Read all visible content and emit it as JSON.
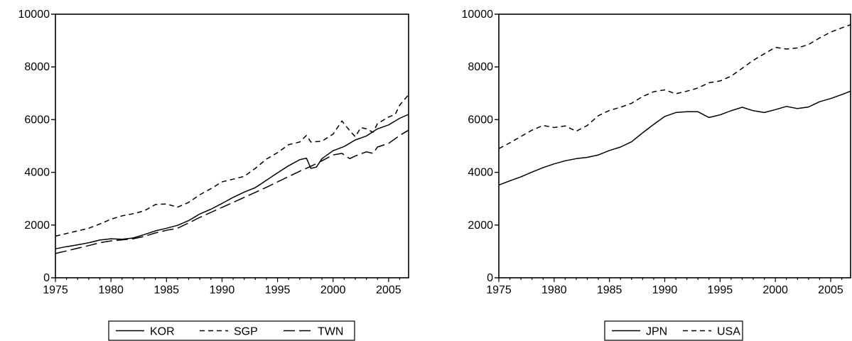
{
  "chart_data": [
    {
      "type": "line",
      "title": "",
      "xlabel": "",
      "ylabel": "",
      "xlim": [
        1975,
        2006.8
      ],
      "ylim": [
        0,
        10000
      ],
      "x_ticks": [
        1975,
        1980,
        1985,
        1990,
        1995,
        2000,
        2005
      ],
      "y_ticks": [
        0,
        2000,
        4000,
        6000,
        8000,
        10000
      ],
      "grid": false,
      "legend_position": "bottom",
      "series": [
        {
          "name": "KOR",
          "line_style": "solid",
          "points": [
            [
              1975,
              1100
            ],
            [
              1976,
              1180
            ],
            [
              1977,
              1250
            ],
            [
              1978,
              1330
            ],
            [
              1979,
              1430
            ],
            [
              1980,
              1480
            ],
            [
              1981,
              1460
            ],
            [
              1982,
              1510
            ],
            [
              1983,
              1640
            ],
            [
              1984,
              1780
            ],
            [
              1985,
              1880
            ],
            [
              1986,
              1990
            ],
            [
              1987,
              2170
            ],
            [
              1988,
              2420
            ],
            [
              1989,
              2600
            ],
            [
              1990,
              2820
            ],
            [
              1991,
              3050
            ],
            [
              1992,
              3250
            ],
            [
              1993,
              3420
            ],
            [
              1994,
              3700
            ],
            [
              1995,
              3980
            ],
            [
              1996,
              4250
            ],
            [
              1997,
              4480
            ],
            [
              1997.6,
              4540
            ],
            [
              1998,
              4150
            ],
            [
              1998.5,
              4200
            ],
            [
              1999,
              4520
            ],
            [
              2000,
              4820
            ],
            [
              2001,
              4980
            ],
            [
              2002,
              5230
            ],
            [
              2003,
              5380
            ],
            [
              2004,
              5650
            ],
            [
              2005,
              5800
            ],
            [
              2006,
              6050
            ],
            [
              2006.8,
              6200
            ]
          ]
        },
        {
          "name": "SGP",
          "line_style": "dashed",
          "points": [
            [
              1975,
              1580
            ],
            [
              1976,
              1680
            ],
            [
              1977,
              1780
            ],
            [
              1978,
              1880
            ],
            [
              1979,
              2040
            ],
            [
              1980,
              2220
            ],
            [
              1981,
              2350
            ],
            [
              1982,
              2430
            ],
            [
              1983,
              2540
            ],
            [
              1984,
              2780
            ],
            [
              1985,
              2800
            ],
            [
              1986,
              2680
            ],
            [
              1987,
              2860
            ],
            [
              1988,
              3150
            ],
            [
              1989,
              3380
            ],
            [
              1990,
              3640
            ],
            [
              1991,
              3740
            ],
            [
              1992,
              3850
            ],
            [
              1993,
              4150
            ],
            [
              1994,
              4500
            ],
            [
              1995,
              4750
            ],
            [
              1996,
              5050
            ],
            [
              1997,
              5150
            ],
            [
              1997.6,
              5400
            ],
            [
              1998,
              5150
            ],
            [
              1999,
              5180
            ],
            [
              2000,
              5450
            ],
            [
              2000.8,
              5950
            ],
            [
              2001.5,
              5580
            ],
            [
              2002,
              5350
            ],
            [
              2002.5,
              5700
            ],
            [
              2003,
              5650
            ],
            [
              2003.6,
              5520
            ],
            [
              2004,
              5850
            ],
            [
              2005,
              6100
            ],
            [
              2005.6,
              6200
            ],
            [
              2006,
              6550
            ],
            [
              2006.8,
              6950
            ]
          ]
        },
        {
          "name": "TWN",
          "line_style": "long-dash",
          "points": [
            [
              1975,
              920
            ],
            [
              1976,
              1020
            ],
            [
              1977,
              1120
            ],
            [
              1978,
              1220
            ],
            [
              1979,
              1330
            ],
            [
              1980,
              1400
            ],
            [
              1981,
              1440
            ],
            [
              1982,
              1480
            ],
            [
              1983,
              1570
            ],
            [
              1984,
              1700
            ],
            [
              1985,
              1800
            ],
            [
              1986,
              1880
            ],
            [
              1987,
              2080
            ],
            [
              1988,
              2290
            ],
            [
              1989,
              2480
            ],
            [
              1990,
              2670
            ],
            [
              1991,
              2860
            ],
            [
              1992,
              3050
            ],
            [
              1993,
              3240
            ],
            [
              1994,
              3430
            ],
            [
              1995,
              3640
            ],
            [
              1996,
              3840
            ],
            [
              1997,
              4040
            ],
            [
              1998,
              4230
            ],
            [
              1999,
              4440
            ],
            [
              2000,
              4660
            ],
            [
              2000.8,
              4720
            ],
            [
              2001.5,
              4520
            ],
            [
              2002,
              4620
            ],
            [
              2003,
              4780
            ],
            [
              2003.6,
              4720
            ],
            [
              2004,
              4960
            ],
            [
              2005,
              5100
            ],
            [
              2006,
              5400
            ],
            [
              2006.8,
              5600
            ]
          ]
        }
      ]
    },
    {
      "type": "line",
      "title": "",
      "xlabel": "",
      "ylabel": "",
      "xlim": [
        1975,
        2006.8
      ],
      "ylim": [
        0,
        10000
      ],
      "x_ticks": [
        1975,
        1980,
        1985,
        1990,
        1995,
        2000,
        2005
      ],
      "y_ticks": [
        0,
        2000,
        4000,
        6000,
        8000,
        10000
      ],
      "grid": false,
      "legend_position": "bottom",
      "series": [
        {
          "name": "JPN",
          "line_style": "solid",
          "points": [
            [
              1975,
              3520
            ],
            [
              1976,
              3680
            ],
            [
              1977,
              3830
            ],
            [
              1978,
              4010
            ],
            [
              1979,
              4180
            ],
            [
              1980,
              4320
            ],
            [
              1981,
              4440
            ],
            [
              1982,
              4520
            ],
            [
              1983,
              4570
            ],
            [
              1984,
              4660
            ],
            [
              1985,
              4830
            ],
            [
              1986,
              4960
            ],
            [
              1987,
              5160
            ],
            [
              1988,
              5500
            ],
            [
              1989,
              5820
            ],
            [
              1990,
              6120
            ],
            [
              1991,
              6270
            ],
            [
              1992,
              6300
            ],
            [
              1993,
              6300
            ],
            [
              1994,
              6080
            ],
            [
              1995,
              6180
            ],
            [
              1996,
              6340
            ],
            [
              1997,
              6470
            ],
            [
              1998,
              6340
            ],
            [
              1999,
              6270
            ],
            [
              2000,
              6380
            ],
            [
              2001,
              6500
            ],
            [
              2002,
              6420
            ],
            [
              2003,
              6480
            ],
            [
              2004,
              6680
            ],
            [
              2005,
              6800
            ],
            [
              2006,
              6950
            ],
            [
              2006.8,
              7080
            ]
          ]
        },
        {
          "name": "USA",
          "line_style": "dashed",
          "points": [
            [
              1975,
              4900
            ],
            [
              1976,
              5120
            ],
            [
              1977,
              5360
            ],
            [
              1978,
              5600
            ],
            [
              1979,
              5780
            ],
            [
              1980,
              5700
            ],
            [
              1981,
              5760
            ],
            [
              1982,
              5560
            ],
            [
              1983,
              5780
            ],
            [
              1984,
              6150
            ],
            [
              1985,
              6350
            ],
            [
              1986,
              6470
            ],
            [
              1987,
              6620
            ],
            [
              1988,
              6880
            ],
            [
              1989,
              7060
            ],
            [
              1990,
              7130
            ],
            [
              1991,
              6980
            ],
            [
              1992,
              7080
            ],
            [
              1993,
              7200
            ],
            [
              1994,
              7400
            ],
            [
              1995,
              7470
            ],
            [
              1996,
              7650
            ],
            [
              1997,
              7950
            ],
            [
              1998,
              8250
            ],
            [
              1999,
              8500
            ],
            [
              2000,
              8740
            ],
            [
              2001,
              8680
            ],
            [
              2002,
              8720
            ],
            [
              2003,
              8850
            ],
            [
              2004,
              9100
            ],
            [
              2005,
              9320
            ],
            [
              2006,
              9480
            ],
            [
              2006.8,
              9600
            ]
          ]
        }
      ]
    }
  ]
}
